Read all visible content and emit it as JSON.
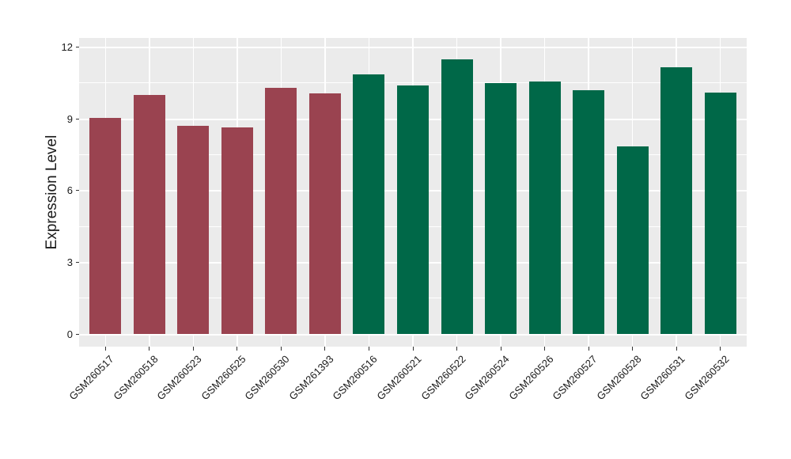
{
  "chart_data": {
    "type": "bar",
    "title": "",
    "xlabel": "",
    "ylabel": "Expression Level",
    "categories": [
      "GSM260517",
      "GSM260518",
      "GSM260523",
      "GSM260525",
      "GSM260530",
      "GSM261393",
      "GSM260516",
      "GSM260521",
      "GSM260522",
      "GSM260524",
      "GSM260526",
      "GSM260527",
      "GSM260528",
      "GSM260531",
      "GSM260532"
    ],
    "values": [
      9.05,
      10.0,
      8.7,
      8.65,
      10.3,
      10.05,
      10.85,
      10.4,
      11.5,
      10.5,
      10.55,
      10.2,
      7.85,
      11.15,
      10.1
    ],
    "bar_groups": [
      "group1",
      "group1",
      "group1",
      "group1",
      "group1",
      "group1",
      "group2",
      "group2",
      "group2",
      "group2",
      "group2",
      "group2",
      "group2",
      "group2",
      "group2"
    ],
    "group_colors": {
      "group1": "#9A4350",
      "group2": "#006848"
    },
    "yticks": [
      0,
      3,
      6,
      9,
      12
    ],
    "yticks_minor": [
      1.5,
      4.5,
      7.5,
      10.5
    ],
    "ylim": [
      0,
      12.1
    ],
    "x_tick_rotation": 45,
    "grid": true,
    "legend_position": "none",
    "panel_bg": "#EBEBEB",
    "grid_color": "#FFFFFF",
    "axis_text_color": "#1A1A1A",
    "tick_mark_color": "#333333"
  }
}
